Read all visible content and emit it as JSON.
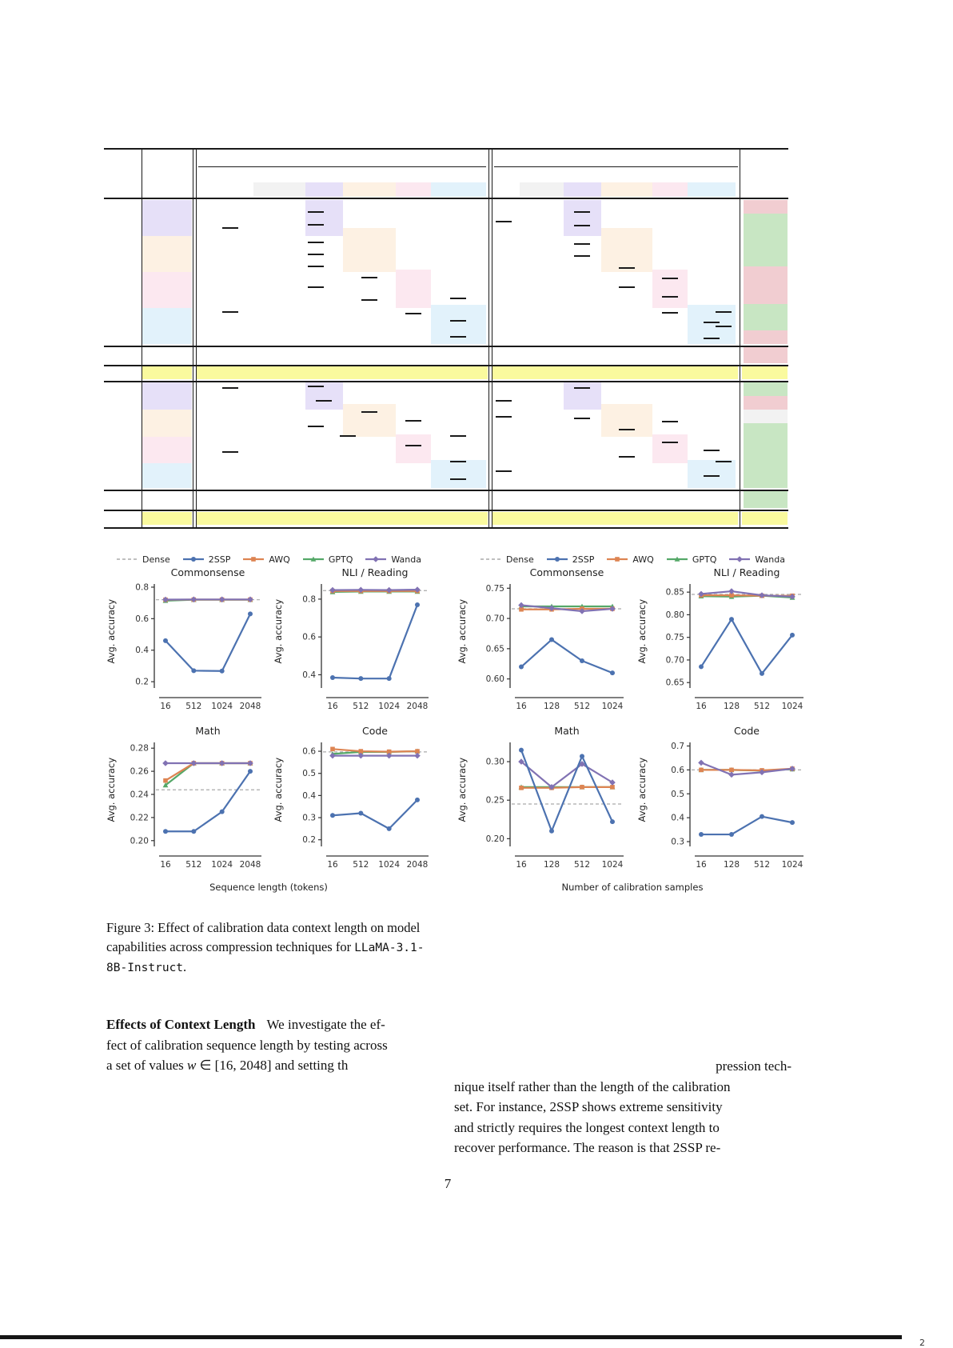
{
  "page": {
    "number": "7"
  },
  "series_colors": {
    "Dense": "#999999",
    "2SSP": "#4c72b0",
    "AWQ": "#dd8452",
    "GPTQ": "#55a868",
    "Wanda": "#8172b3"
  },
  "series_markers": {
    "Dense": "none",
    "2SSP": "circle",
    "AWQ": "square",
    "GPTQ": "triangle",
    "Wanda": "diamond"
  },
  "table_palette": {
    "lavender": "#e6e0f8",
    "peach": "#fdf1e3",
    "pink": "#fce8f0",
    "sky": "#e2f2fb",
    "gray": "#f2f2f2",
    "yellow": "#fafa9e",
    "green": "#c8e6c3",
    "red": "#f1cdd1",
    "line": "#1a1a1a"
  },
  "figures": [
    {
      "id": "left",
      "legend": [
        "Dense",
        "2SSP",
        "AWQ",
        "GPTQ",
        "Wanda"
      ],
      "xlabel": "Sequence length (tokens)",
      "x_ticklabels": [
        "16",
        "512",
        "1024",
        "2048"
      ]
    },
    {
      "id": "right",
      "legend": [
        "Dense",
        "2SSP",
        "AWQ",
        "GPTQ",
        "Wanda"
      ],
      "xlabel": "Number of calibration samples",
      "x_ticklabels": [
        "16",
        "128",
        "512",
        "1024"
      ]
    }
  ],
  "chart_data": [
    {
      "figure": "left",
      "type": "line",
      "title": "Commonsense",
      "ylabel": "Avg. accuracy",
      "x": [
        16,
        512,
        1024,
        2048
      ],
      "ylim": [
        0.16,
        0.82
      ],
      "yticks": [
        "0.2",
        "0.4",
        "0.6",
        "0.8"
      ],
      "series": [
        {
          "name": "Dense",
          "style": "dashed",
          "values": [
            0.72,
            0.72,
            0.72,
            0.72
          ]
        },
        {
          "name": "GPTQ",
          "values": [
            0.714,
            0.72,
            0.72,
            0.72
          ]
        },
        {
          "name": "AWQ",
          "values": [
            0.72,
            0.721,
            0.721,
            0.721
          ]
        },
        {
          "name": "Wanda",
          "values": [
            0.721,
            0.722,
            0.722,
            0.722
          ]
        },
        {
          "name": "2SSP",
          "values": [
            0.46,
            0.27,
            0.268,
            0.63
          ]
        }
      ]
    },
    {
      "figure": "left",
      "type": "line",
      "title": "NLI / Reading",
      "ylabel": "Avg. accuracy",
      "x": [
        16,
        512,
        1024,
        2048
      ],
      "ylim": [
        0.33,
        0.88
      ],
      "yticks": [
        "0.4",
        "0.6",
        "0.8"
      ],
      "series": [
        {
          "name": "Dense",
          "style": "dashed",
          "values": [
            0.845,
            0.845,
            0.845,
            0.845
          ]
        },
        {
          "name": "GPTQ",
          "values": [
            0.838,
            0.84,
            0.84,
            0.84
          ]
        },
        {
          "name": "AWQ",
          "values": [
            0.843,
            0.843,
            0.843,
            0.843
          ]
        },
        {
          "name": "Wanda",
          "values": [
            0.848,
            0.849,
            0.848,
            0.85
          ]
        },
        {
          "name": "2SSP",
          "values": [
            0.385,
            0.38,
            0.38,
            0.77
          ]
        }
      ]
    },
    {
      "figure": "left",
      "type": "line",
      "title": "Math",
      "ylabel": "Avg. accuracy",
      "x": [
        16,
        512,
        1024,
        2048
      ],
      "ylim": [
        0.195,
        0.285
      ],
      "yticks": [
        "0.20",
        "0.22",
        "0.24",
        "0.26",
        "0.28"
      ],
      "series": [
        {
          "name": "Dense",
          "style": "dashed",
          "values": [
            0.244,
            0.244,
            0.244,
            0.244
          ]
        },
        {
          "name": "GPTQ",
          "values": [
            0.248,
            0.267,
            0.267,
            0.267
          ]
        },
        {
          "name": "AWQ",
          "values": [
            0.252,
            0.267,
            0.267,
            0.267
          ]
        },
        {
          "name": "Wanda",
          "values": [
            0.267,
            0.267,
            0.267,
            0.267
          ]
        },
        {
          "name": "2SSP",
          "values": [
            0.208,
            0.208,
            0.225,
            0.26
          ]
        }
      ]
    },
    {
      "figure": "left",
      "type": "line",
      "title": "Code",
      "ylabel": "Avg. accuracy",
      "x": [
        16,
        512,
        1024,
        2048
      ],
      "ylim": [
        0.17,
        0.64
      ],
      "yticks": [
        "0.2",
        "0.3",
        "0.4",
        "0.5",
        "0.6"
      ],
      "series": [
        {
          "name": "Dense",
          "style": "dashed",
          "values": [
            0.597,
            0.597,
            0.597,
            0.597
          ]
        },
        {
          "name": "GPTQ",
          "values": [
            0.588,
            0.597,
            0.597,
            0.6
          ]
        },
        {
          "name": "AWQ",
          "values": [
            0.61,
            0.6,
            0.598,
            0.6
          ]
        },
        {
          "name": "Wanda",
          "values": [
            0.58,
            0.58,
            0.58,
            0.58
          ]
        },
        {
          "name": "2SSP",
          "values": [
            0.31,
            0.32,
            0.25,
            0.38
          ]
        }
      ]
    },
    {
      "figure": "right",
      "type": "line",
      "title": "Commonsense",
      "ylabel": "Avg. accuracy",
      "x": [
        16,
        128,
        512,
        1024
      ],
      "ylim": [
        0.585,
        0.757
      ],
      "yticks": [
        "0.60",
        "0.65",
        "0.70",
        "0.75"
      ],
      "series": [
        {
          "name": "Dense",
          "style": "dashed",
          "values": [
            0.716,
            0.716,
            0.716,
            0.716
          ]
        },
        {
          "name": "GPTQ",
          "values": [
            0.72,
            0.72,
            0.72,
            0.72
          ]
        },
        {
          "name": "AWQ",
          "values": [
            0.715,
            0.715,
            0.716,
            0.716
          ]
        },
        {
          "name": "Wanda",
          "values": [
            0.722,
            0.717,
            0.712,
            0.716
          ]
        },
        {
          "name": "2SSP",
          "values": [
            0.62,
            0.665,
            0.63,
            0.61
          ]
        }
      ]
    },
    {
      "figure": "right",
      "type": "line",
      "title": "NLI / Reading",
      "ylabel": "Avg. accuracy",
      "x": [
        16,
        128,
        512,
        1024
      ],
      "ylim": [
        0.638,
        0.868
      ],
      "yticks": [
        "0.65",
        "0.70",
        "0.75",
        "0.80",
        "0.85"
      ],
      "series": [
        {
          "name": "Dense",
          "style": "dashed",
          "values": [
            0.845,
            0.845,
            0.845,
            0.845
          ]
        },
        {
          "name": "GPTQ",
          "values": [
            0.841,
            0.84,
            0.842,
            0.838
          ]
        },
        {
          "name": "AWQ",
          "values": [
            0.843,
            0.843,
            0.842,
            0.842
          ]
        },
        {
          "name": "Wanda",
          "values": [
            0.846,
            0.852,
            0.843,
            0.84
          ]
        },
        {
          "name": "2SSP",
          "values": [
            0.685,
            0.79,
            0.67,
            0.755
          ]
        }
      ]
    },
    {
      "figure": "right",
      "type": "line",
      "title": "Math",
      "ylabel": "Avg. accuracy",
      "x": [
        16,
        128,
        512,
        1024
      ],
      "ylim": [
        0.19,
        0.325
      ],
      "yticks": [
        "0.20",
        "0.25",
        "0.30"
      ],
      "series": [
        {
          "name": "Dense",
          "style": "dashed",
          "values": [
            0.245,
            0.245,
            0.245,
            0.245
          ]
        },
        {
          "name": "GPTQ",
          "values": [
            0.267,
            0.267,
            0.267,
            0.267
          ]
        },
        {
          "name": "AWQ",
          "values": [
            0.266,
            0.266,
            0.267,
            0.267
          ]
        },
        {
          "name": "Wanda",
          "values": [
            0.3,
            0.267,
            0.297,
            0.273
          ]
        },
        {
          "name": "2SSP",
          "values": [
            0.315,
            0.21,
            0.307,
            0.222
          ]
        }
      ]
    },
    {
      "figure": "right",
      "type": "line",
      "title": "Code",
      "ylabel": "Avg. accuracy",
      "x": [
        16,
        128,
        512,
        1024
      ],
      "ylim": [
        0.28,
        0.715
      ],
      "yticks": [
        "0.3",
        "0.4",
        "0.5",
        "0.6",
        "0.7"
      ],
      "series": [
        {
          "name": "Dense",
          "style": "dashed",
          "values": [
            0.6,
            0.6,
            0.6,
            0.6
          ]
        },
        {
          "name": "GPTQ",
          "values": [
            0.6,
            0.6,
            0.597,
            0.603
          ]
        },
        {
          "name": "AWQ",
          "values": [
            0.6,
            0.6,
            0.598,
            0.605
          ]
        },
        {
          "name": "Wanda",
          "values": [
            0.63,
            0.58,
            0.59,
            0.605
          ]
        },
        {
          "name": "2SSP",
          "values": [
            0.33,
            0.33,
            0.405,
            0.38
          ]
        }
      ]
    }
  ],
  "caption": {
    "label": "Figure 3:",
    "text": " Effect of calibration data context length on model capabilities across compression techniques for ",
    "code": "LLaMA-3.1-8B-Instruct",
    "suffix": "."
  },
  "body_left": {
    "heading": "Effects of Context Length",
    "line1": "We investigate the ef-",
    "line2": "fect of calibration sequence length by testing across",
    "line3_pre": "a set of values ",
    "math_var": "w",
    "math_rest": " ∈ [16, 2048]",
    "line3_post": " and setting th"
  },
  "body_right": {
    "line1": "pression tech-",
    "line2": "nique itself rather than the length of the calibration",
    "line3": "set. For instance, 2SSP shows extreme sensitivity",
    "line4": "and strictly requires the longest context length to",
    "line5": "recover performance. The reason is that 2SSP re-"
  },
  "footer_mark": "2"
}
